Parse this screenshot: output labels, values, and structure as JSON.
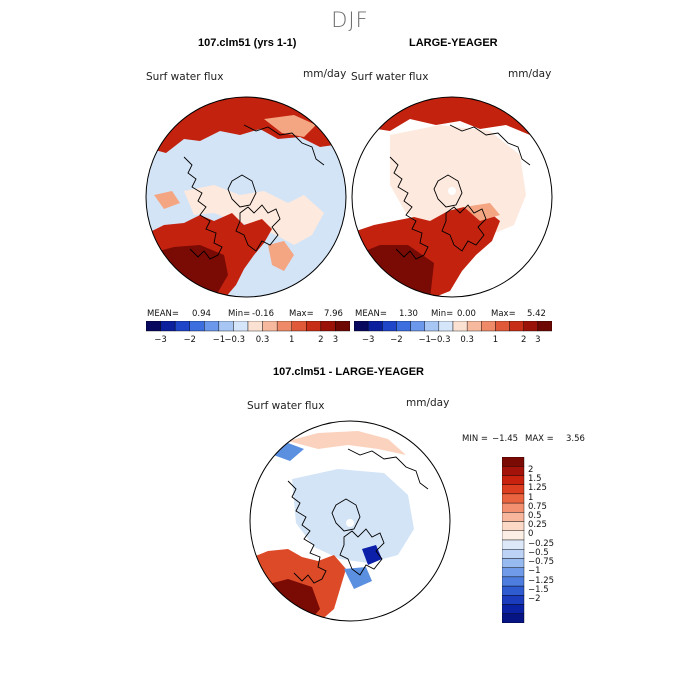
{
  "figure": {
    "season": "DJF",
    "colors": {
      "deep_red": "#7a0a04",
      "red": "#c3220f",
      "red_orange": "#dd4a28",
      "salmon": "#f4a582",
      "light_salmon": "#fbd2bd",
      "pale": "#fde9dd",
      "light_blue": "#d3e4f7",
      "blue": "#5b8fe0",
      "deep_blue": "#0b1fa8",
      "coast": "#000000"
    }
  },
  "chart_data": [
    {
      "type": "map",
      "projection": "north polar stereographic",
      "title": "107.clm51 (yrs 1-1)",
      "variable": "Surf water flux",
      "units": "mm/day",
      "stats": {
        "mean_label": "MEAN=",
        "mean": "0.94",
        "min_label": "Min=",
        "min": "-0.16",
        "max_label": "Max=",
        "max": "7.96"
      },
      "colorbar": {
        "orientation": "horizontal",
        "colors": [
          "#08085e",
          "#0c1f9c",
          "#1f45c9",
          "#3d6ee0",
          "#6c98ec",
          "#a8c6f4",
          "#d6e6fa",
          "#fbe1d2",
          "#f6b99d",
          "#ee8a67",
          "#e05a3a",
          "#c62e18",
          "#9b1308",
          "#6e0804"
        ],
        "tick_labels": [
          "−3",
          "−2",
          "−1",
          "−0.3",
          "0.3",
          "1",
          "2",
          "3"
        ]
      }
    },
    {
      "type": "map",
      "projection": "north polar stereographic",
      "title": "LARGE-YEAGER",
      "variable": "Surf water flux",
      "units": "mm/day",
      "stats": {
        "mean_label": "MEAN=",
        "mean": "1.30",
        "min_label": "Min=",
        "min": "0.00",
        "max_label": "Max=",
        "max": "5.42"
      },
      "colorbar": {
        "orientation": "horizontal",
        "colors": [
          "#08085e",
          "#0c1f9c",
          "#1f45c9",
          "#3d6ee0",
          "#6c98ec",
          "#a8c6f4",
          "#d6e6fa",
          "#fbe1d2",
          "#f6b99d",
          "#ee8a67",
          "#e05a3a",
          "#c62e18",
          "#9b1308",
          "#6e0804"
        ],
        "tick_labels": [
          "−3",
          "−2",
          "−1",
          "−0.3",
          "0.3",
          "1",
          "2",
          "3"
        ]
      }
    },
    {
      "type": "map",
      "projection": "north polar stereographic",
      "title": "107.clm51 - LARGE-YEAGER",
      "variable": "Surf water flux",
      "units": "mm/day",
      "stats": {
        "min_label": "MIN =",
        "min": "−1.45",
        "max_label": "MAX =",
        "max": "3.56"
      },
      "colorbar": {
        "orientation": "vertical",
        "colors": [
          "#7a0a04",
          "#a41309",
          "#c8220f",
          "#dd3e1f",
          "#ea6440",
          "#f39070",
          "#f8b79d",
          "#fcd9c7",
          "#fbeee5",
          "#dce8f8",
          "#bdd3f5",
          "#97baf0",
          "#6f9be9",
          "#4d7ddf",
          "#2f5bd0",
          "#1a3cbd",
          "#0c22a4",
          "#061583"
        ],
        "tick_labels": [
          "2",
          "1.5",
          "1.25",
          "1",
          "0.75",
          "0.5",
          "0.25",
          "0",
          "−0.25",
          "−0.5",
          "−0.75",
          "−1",
          "−1.25",
          "−1.5",
          "−2"
        ]
      }
    }
  ]
}
